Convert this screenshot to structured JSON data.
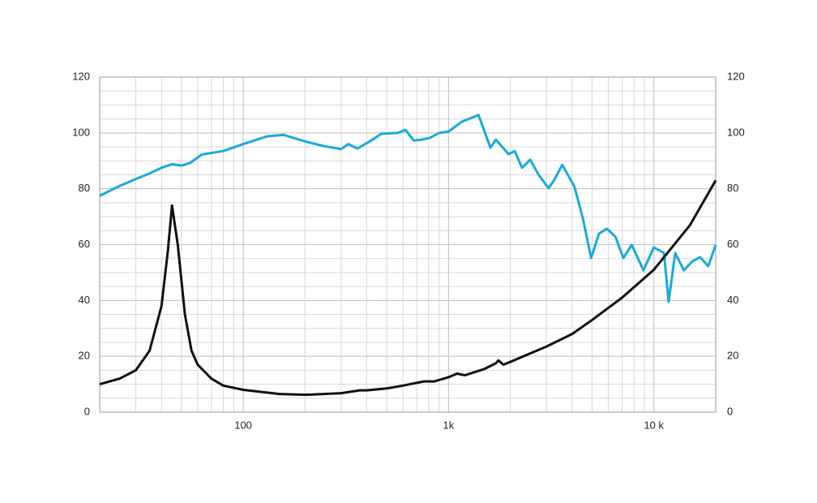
{
  "chart_data": {
    "type": "line",
    "xscale": "log",
    "grid": true,
    "xlim": [
      20,
      20000
    ],
    "xticks": [
      100,
      {
        "value": 1000,
        "label": "1k"
      },
      {
        "value": 10000,
        "label": "10 k"
      }
    ],
    "ylim": [
      0,
      120
    ],
    "yticks": [
      0,
      20,
      40,
      60,
      80,
      100,
      120
    ],
    "y2lim": [
      0,
      120
    ],
    "y2ticks": [
      0,
      20,
      40,
      60,
      80,
      100,
      120
    ],
    "series": [
      {
        "color": "#1aa9dc",
        "x": [
          20,
          25,
          30,
          35,
          40,
          45,
          50,
          55,
          63,
          80,
          100,
          131,
          157,
          206,
          247,
          300,
          325,
          360,
          427,
          470,
          566,
          617,
          676,
          740,
          810,
          900,
          1000,
          1160,
          1400,
          1600,
          1700,
          1960,
          2100,
          2280,
          2500,
          2740,
          3070,
          3270,
          3580,
          4100,
          4500,
          4950,
          5400,
          5900,
          6500,
          7100,
          7800,
          8900,
          10000,
          11200,
          11800,
          12700,
          14000,
          15400,
          16800,
          18400,
          20000
        ],
        "values": [
          77.5,
          81,
          83.5,
          85.5,
          87.5,
          88.8,
          88.3,
          89.2,
          92.3,
          93.5,
          96,
          98.8,
          99.3,
          96.7,
          95.3,
          94.2,
          96,
          94.4,
          97.6,
          99.7,
          100,
          101.1,
          97.3,
          97.6,
          98.2,
          100,
          100.5,
          104,
          106.4,
          94.7,
          97.6,
          92.4,
          93.5,
          87.5,
          90.4,
          85.1,
          80.2,
          83.1,
          88.6,
          80.8,
          69.7,
          55.2,
          63.9,
          65.7,
          62.8,
          55.2,
          59.9,
          50.8,
          59,
          57,
          39.5,
          57,
          50.8,
          54,
          55.5,
          52.3,
          59.9
        ]
      },
      {
        "color": "#111111",
        "axis": "y2",
        "x": [
          20,
          25,
          30,
          35,
          40,
          43,
          45,
          48,
          52,
          56,
          60,
          70,
          80,
          100,
          150,
          200,
          300,
          370,
          400,
          500,
          600,
          700,
          760,
          850,
          1000,
          1100,
          1200,
          1500,
          1700,
          1750,
          1850,
          2000,
          3000,
          4000,
          5000,
          7000,
          10000,
          15000,
          20000
        ],
        "values": [
          10,
          12,
          15,
          22,
          38,
          58,
          74,
          60,
          35,
          22,
          17,
          12,
          9.5,
          8,
          6.5,
          6.2,
          6.8,
          7.8,
          7.8,
          8.5,
          9.5,
          10.5,
          11,
          11,
          12.5,
          13.8,
          13.2,
          15.5,
          17.5,
          18.5,
          17,
          18,
          23.5,
          28,
          33,
          41,
          51,
          67,
          83
        ]
      }
    ]
  }
}
